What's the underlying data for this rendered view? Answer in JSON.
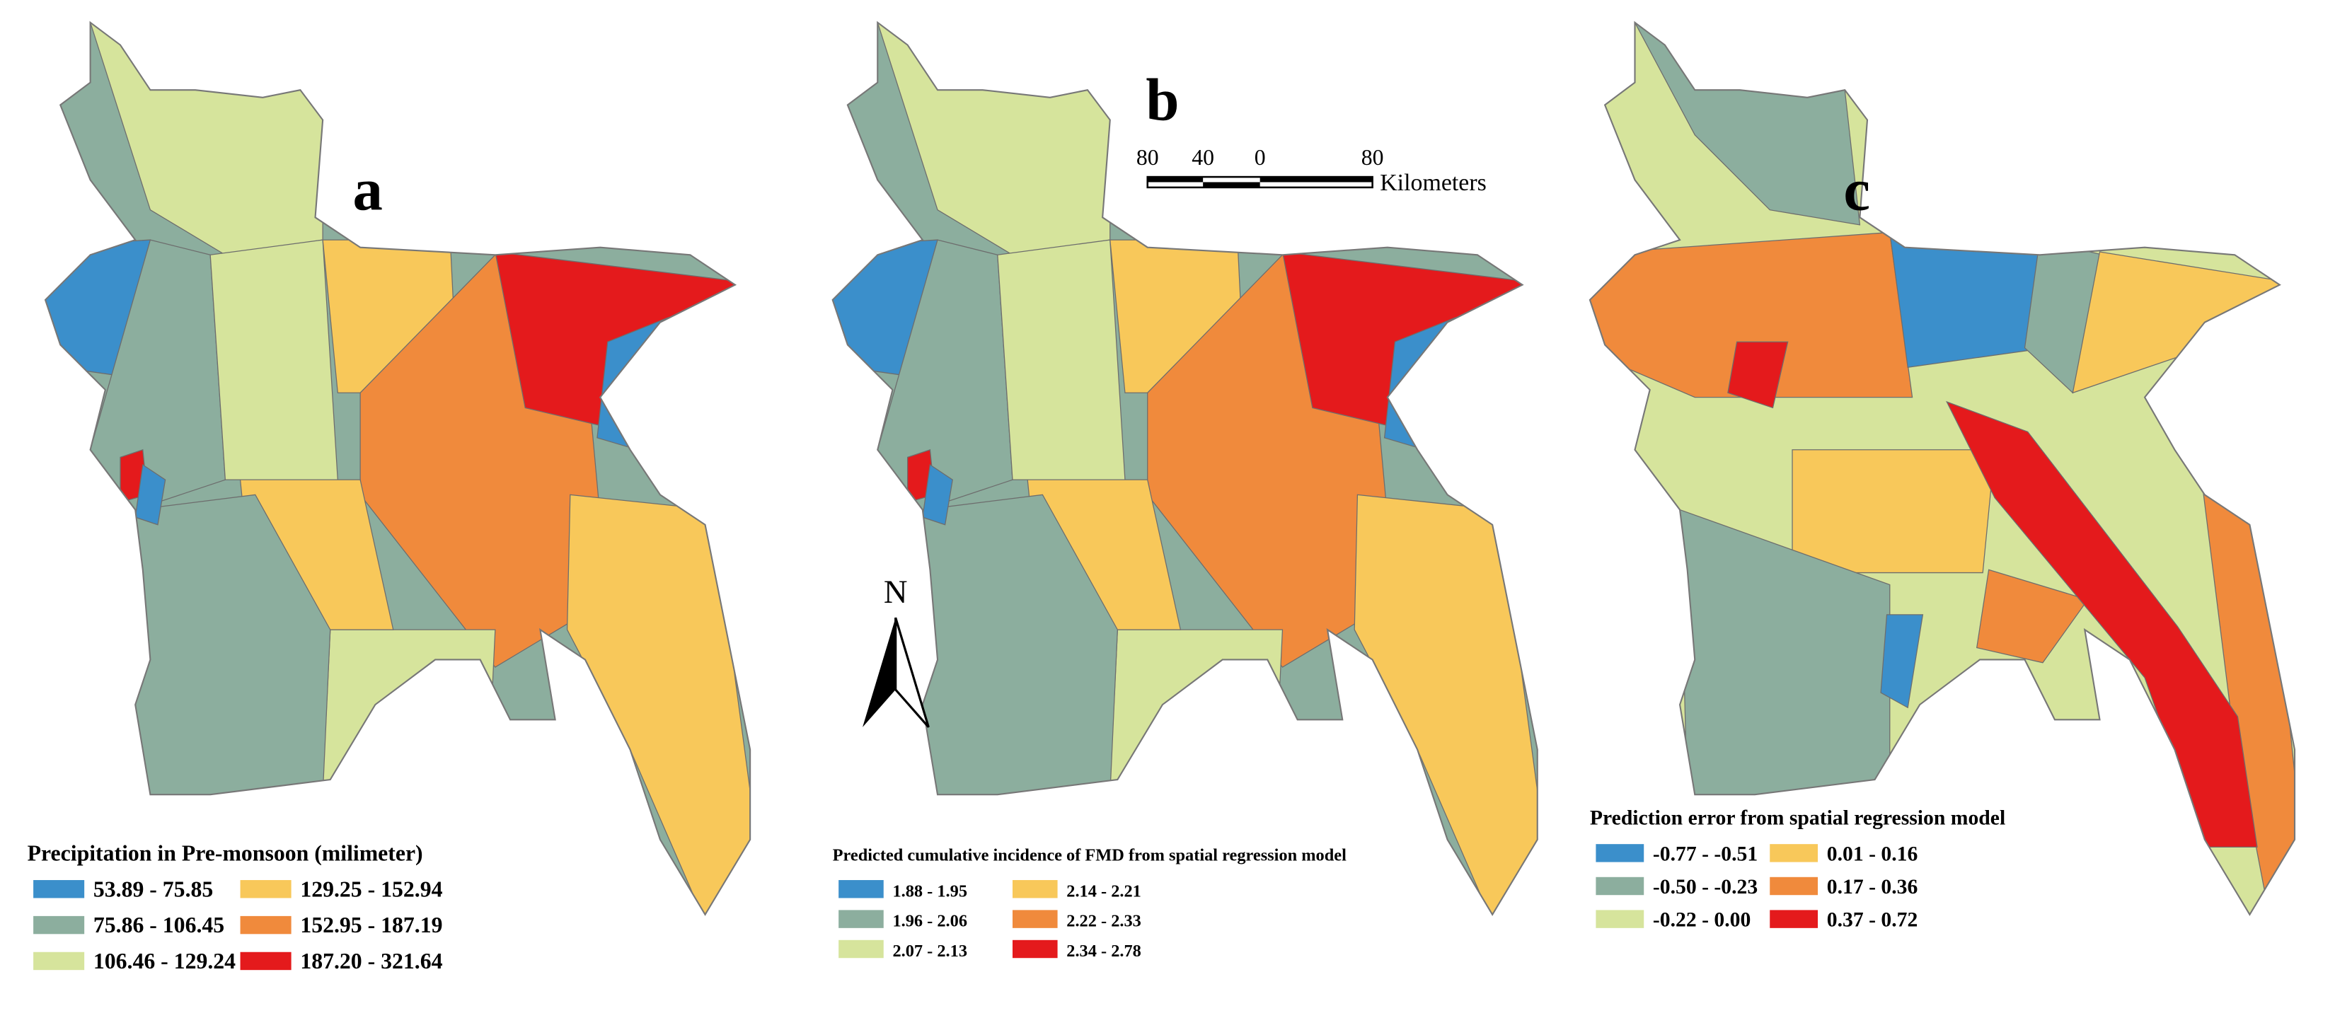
{
  "panels": [
    {
      "label": "a",
      "legend_title": "Precipitation in Pre-monsoon (milimeter)",
      "legend": [
        {
          "label": "53.89 - 75.85",
          "color": "#3b8fcb"
        },
        {
          "label": "75.86 - 106.45",
          "color": "#8cae9e"
        },
        {
          "label": "106.46 - 129.24",
          "color": "#d6e49c"
        },
        {
          "label": "129.25 - 152.94",
          "color": "#f8c85a"
        },
        {
          "label": "152.95 - 187.19",
          "color": "#f08a3c"
        },
        {
          "label": "187.20 - 321.64",
          "color": "#e41a1c"
        }
      ]
    },
    {
      "label": "b",
      "legend_title": "Predicted cumulative incidence of FMD from spatial regression model",
      "legend": [
        {
          "label": "1.88 - 1.95",
          "color": "#3b8fcb"
        },
        {
          "label": "1.96 - 2.06",
          "color": "#8cae9e"
        },
        {
          "label": "2.07 - 2.13",
          "color": "#d6e49c"
        },
        {
          "label": "2.14 - 2.21",
          "color": "#f8c85a"
        },
        {
          "label": "2.22 - 2.33",
          "color": "#f08a3c"
        },
        {
          "label": "2.34 - 2.78",
          "color": "#e41a1c"
        }
      ]
    },
    {
      "label": "c",
      "legend_title": "Prediction error from spatial regression model",
      "legend": [
        {
          "label": "-0.77 - -0.51",
          "color": "#3b8fcb"
        },
        {
          "label": "-0.50 - -0.23",
          "color": "#8cae9e"
        },
        {
          "label": "-0.22 - 0.00",
          "color": "#d6e49c"
        },
        {
          "label": "0.01 - 0.16",
          "color": "#f8c85a"
        },
        {
          "label": "0.17 - 0.36",
          "color": "#f08a3c"
        },
        {
          "label": "0.37 - 0.72",
          "color": "#e41a1c"
        }
      ]
    }
  ],
  "scale_bar": {
    "labels": [
      "80",
      "40",
      "0",
      "80"
    ],
    "unit": "Kilometers"
  },
  "north": "N"
}
